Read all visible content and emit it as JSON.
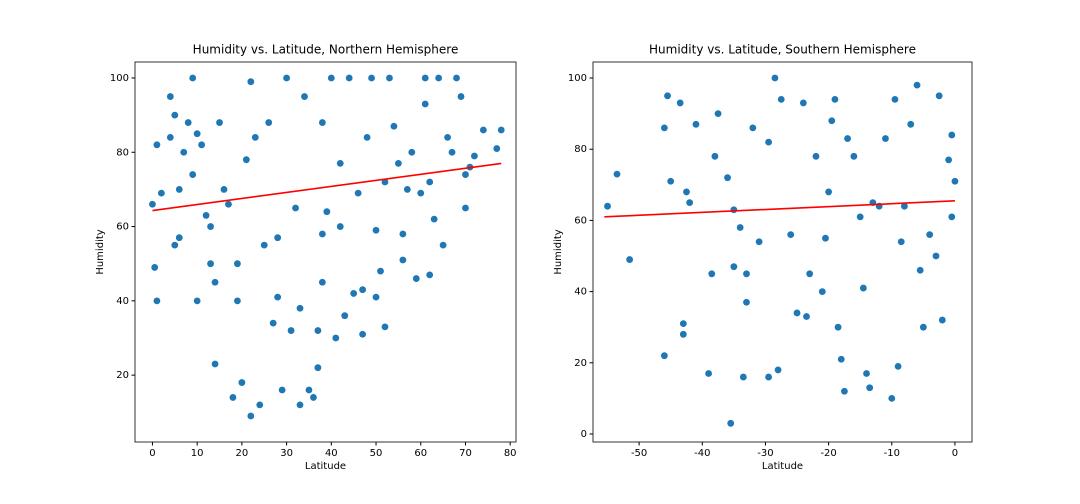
{
  "chart_data": [
    {
      "type": "scatter",
      "title": "Humidity vs. Latitude, Northern Hemisphere",
      "xlabel": "Latitude",
      "ylabel": "Humidity",
      "xlim": [
        -3.9,
        81.3
      ],
      "ylim": [
        2,
        104.3
      ],
      "xticks": [
        0,
        10,
        20,
        30,
        40,
        50,
        60,
        70,
        80
      ],
      "yticks": [
        20,
        40,
        60,
        80,
        100
      ],
      "series": [
        {
          "color": "#1f77b4",
          "x": [
            0,
            0.5,
            1,
            1,
            2,
            4,
            4,
            5,
            5,
            6,
            6,
            7,
            8,
            9,
            9,
            10,
            10,
            11,
            12,
            13,
            13,
            14,
            14,
            15,
            16,
            17,
            18,
            19,
            19,
            20,
            21,
            22,
            22,
            23,
            24,
            25,
            26,
            27,
            28,
            28,
            29,
            30,
            31,
            32,
            33,
            33,
            34,
            35,
            36,
            37,
            37,
            38,
            38,
            38,
            39,
            40,
            41,
            42,
            42,
            43,
            44,
            45,
            46,
            47,
            47,
            48,
            49,
            50,
            50,
            51,
            52,
            52,
            53,
            54,
            55,
            56,
            56,
            57,
            58,
            59,
            60,
            61,
            61,
            62,
            62,
            63,
            64,
            65,
            66,
            67,
            68,
            69,
            70,
            70,
            71,
            72,
            74,
            77,
            78
          ],
          "values": [
            66,
            49,
            40,
            82,
            69,
            95,
            84,
            55,
            90,
            70,
            57,
            80,
            88,
            100,
            74,
            40,
            85,
            82,
            63,
            50,
            60,
            23,
            45,
            88,
            70,
            66,
            14,
            50,
            40,
            18,
            78,
            9,
            99,
            84,
            12,
            55,
            88,
            34,
            41,
            57,
            16,
            100,
            32,
            65,
            12,
            38,
            95,
            16,
            14,
            32,
            22,
            45,
            58,
            88,
            64,
            100,
            30,
            77,
            60,
            36,
            100,
            42,
            69,
            43,
            31,
            84,
            100,
            41,
            59,
            48,
            33,
            72,
            100,
            87,
            77,
            58,
            51,
            70,
            80,
            46,
            69,
            93,
            100,
            47,
            72,
            62,
            100,
            55,
            84,
            80,
            100,
            95,
            74,
            65,
            76,
            79,
            86,
            81,
            86
          ]
        }
      ],
      "regression": {
        "x": [
          0,
          78
        ],
        "y": [
          64.3,
          77
        ],
        "color": "#ff0000"
      }
    },
    {
      "type": "scatter",
      "title": "Humidity vs. Latitude, Southern Hemisphere",
      "xlabel": "Latitude",
      "ylabel": "Humidity",
      "xlim": [
        -57.3,
        2.7
      ],
      "ylim": [
        -2.25,
        104.5
      ],
      "xticks": [
        -50,
        -40,
        -30,
        -20,
        -10,
        0
      ],
      "yticks": [
        0,
        20,
        40,
        60,
        80,
        100
      ],
      "series": [
        {
          "color": "#1f77b4",
          "x": [
            -55,
            -53.5,
            -51.5,
            -46,
            -46,
            -45.5,
            -45,
            -43.5,
            -43,
            -43,
            -42.5,
            -42,
            -41,
            -39,
            -38.5,
            -38,
            -37.5,
            -36,
            -35.5,
            -35,
            -35,
            -34,
            -33.5,
            -33,
            -33,
            -32,
            -31,
            -29.5,
            -29.5,
            -28.5,
            -28,
            -27.5,
            -26,
            -25,
            -24,
            -23.5,
            -23,
            -22,
            -21,
            -20.5,
            -20,
            -19.5,
            -19,
            -18.5,
            -18,
            -17.5,
            -17,
            -16,
            -15,
            -14.5,
            -14,
            -13.5,
            -13,
            -12,
            -11,
            -10,
            -9.5,
            -9,
            -8.5,
            -8,
            -7,
            -6,
            -5.5,
            -5,
            -4,
            -3,
            -2.5,
            -2,
            -1,
            -0.5,
            -0.5,
            0
          ],
          "values": [
            64,
            73,
            49,
            86,
            22,
            95,
            71,
            93,
            31,
            28,
            68,
            65,
            87,
            17,
            45,
            78,
            90,
            72,
            3,
            47,
            63,
            58,
            16,
            45,
            37,
            86,
            54,
            16,
            82,
            100,
            18,
            94,
            56,
            34,
            93,
            33,
            45,
            78,
            40,
            55,
            68,
            88,
            94,
            30,
            21,
            12,
            83,
            78,
            61,
            41,
            17,
            13,
            65,
            64,
            83,
            10,
            94,
            19,
            54,
            64,
            87,
            98,
            46,
            30,
            56,
            50,
            95,
            32,
            77,
            84,
            61,
            71
          ]
        }
      ],
      "regression": {
        "x": [
          -55.5,
          0
        ],
        "y": [
          61,
          65.5
        ],
        "color": "#ff0000"
      }
    }
  ]
}
